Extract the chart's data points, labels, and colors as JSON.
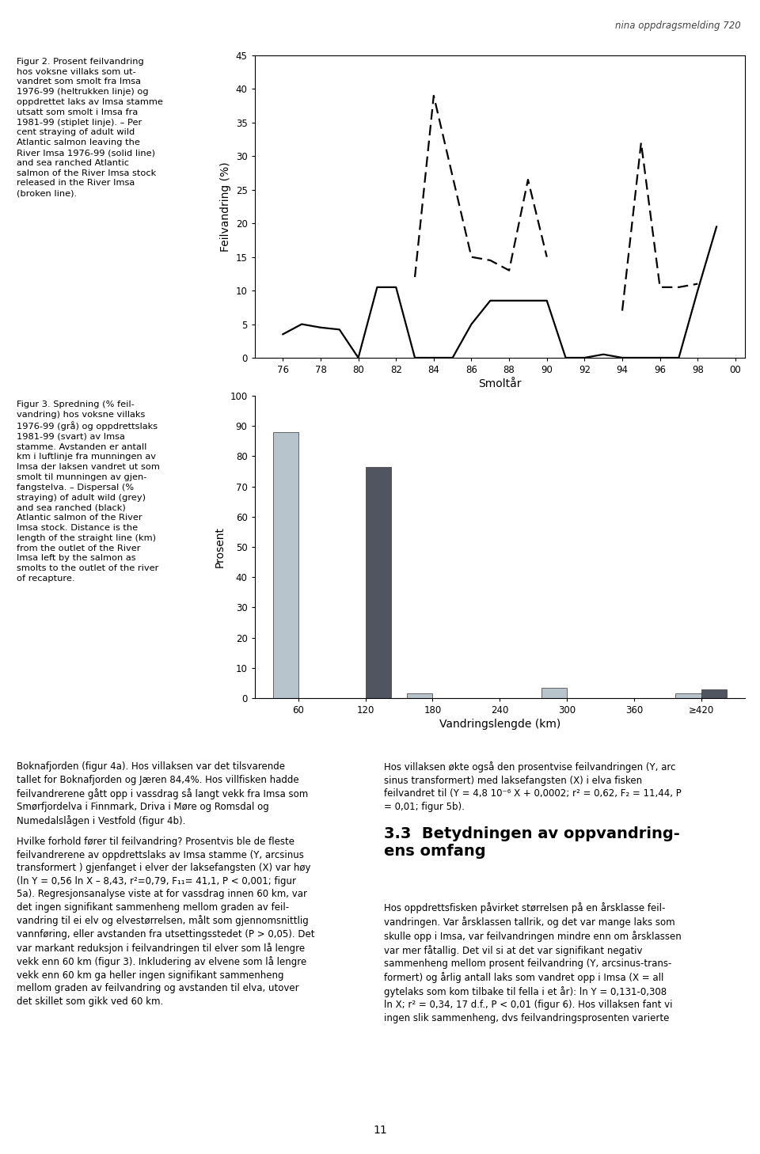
{
  "fig2": {
    "xlabel": "Smoltår",
    "ylabel": "Feilvandring (%)",
    "ylim": [
      0,
      45
    ],
    "yticks": [
      0,
      5,
      10,
      15,
      20,
      25,
      30,
      35,
      40,
      45
    ],
    "xvalues": [
      76,
      77,
      78,
      79,
      80,
      81,
      82,
      83,
      84,
      85,
      86,
      87,
      88,
      89,
      90,
      91,
      92,
      93,
      94,
      95,
      96,
      97,
      98,
      99
    ],
    "solid_line": [
      3.5,
      5.0,
      4.5,
      4.2,
      0.0,
      10.5,
      10.5,
      0.0,
      0.0,
      0.0,
      5.0,
      8.5,
      8.5,
      8.5,
      8.5,
      0.0,
      0.0,
      0.5,
      0.0,
      0.0,
      0.0,
      0.0,
      10.0,
      19.5
    ],
    "dashed_seg1_x": [
      83,
      84,
      85,
      86,
      87,
      88,
      89,
      90
    ],
    "dashed_seg1_y": [
      12.0,
      39.0,
      27.0,
      15.0,
      14.5,
      13.0,
      26.5,
      15.0
    ],
    "dashed_seg2_x": [
      94,
      95,
      96,
      97,
      98
    ],
    "dashed_seg2_y": [
      7.0,
      32.0,
      10.5,
      10.5,
      11.0
    ]
  },
  "fig3": {
    "xlabel": "Vandringslengde (km)",
    "ylabel": "Prosent",
    "ylim": [
      0,
      100
    ],
    "yticks": [
      0,
      10,
      20,
      30,
      40,
      50,
      60,
      70,
      80,
      90,
      100
    ],
    "categories": [
      "60",
      "120",
      "180",
      "240",
      "300",
      "360",
      "≥420"
    ],
    "grey_bars": [
      88.0,
      0.0,
      1.5,
      0.0,
      3.5,
      0.0,
      1.5
    ],
    "dark_bars": [
      0.0,
      76.5,
      0.0,
      0.0,
      0.0,
      0.0,
      3.0
    ],
    "grey_color": "#b8c4cc",
    "dark_color": "#505560"
  },
  "background": "#ffffff",
  "header_text": "nina oppdragsmelding 720",
  "page_number": "11",
  "fig2_left_text": "Figur 2. Prosent feilvandring\nhos voksne villaks som ut-\nvandret som smolt fra Imsa\n1976-99 (heltrukken linje) og\noppdrettet laks av Imsa stamme\nutsatt som smolt i Imsa fra\n1981-99 (stiplet linje). – Per\ncent straying of adult wild\nAtlantic salmon leaving the\nRiver Imsa 1976-99 (solid line)\nand sea ranched Atlantic\nsalmon of the River Imsa stock\nreleased in the River Imsa\n(broken line).",
  "fig3_left_text": "Figur 3. Spredning (% feil-\nvandring) hos voksne villaks\n1976-99 (grå) og oppdrettslaks\n1981-99 (svart) av Imsa\nstamme. Avstanden er antall\nkm i luftlinje fra munningen av\nImsa der laksen vandret ut som\nsmolt til munningen av gjen-\nfangstelva. – Dispersal (%\nstraying) of adult wild (grey)\nand sea ranched (black)\nAtlantic salmon of the River\nImsa stock. Distance is the\nlength of the straight line (km)\nfrom the outlet of the River\nImsa left by the salmon as\nsmolts to the outlet of the river\nof recapture.",
  "bottom_left_para1": "Boknafjorden (figur 4a). Hos villaksen var det tilsvarende tallet for Boknafjorden og Jæren 84,4%. Hos villfisken hadde feilvandrerene gått opp i vassdrag så langt vekk fra Imsa som Smørfjordelva i Finnmark, Driva i Møre og Romsdal og Numedalslågen i Vestfold (figur 4b).",
  "bottom_left_para2": "Hvilke forhold fører til feilvandring? Prosentvis ble de fleste feilvandrerene av oppdrettslaks av Imsa stamme (Y, arcsinus transformert ) gjenfanget i elver der laksefangsten (X) var høy (ln Y = 0,56 ln X – 8,43, r²=0,79, F₁₁= 41,1, P < 0,001; figur 5a). Regresjonsanalyse viste at for vassdrag innen 60 km, var det ingen signifikant sammenheng mellom graden av feilvandring til ei elv og elvestørrelsen, målt som gjennomsnittlig vannføring, eller avstanden fra utsettingsstedet (P > 0,05). Det var markant reduksjon i feilvandringen til elver som lå lengre vekk enn 60 km (figur 3). Inkludering av elvene som lå lengre vekk enn 60 km ga heller ingen signifikant sammenheng mellom graden av feilvandring og avstanden til elva, utover det skillet som gikk ved 60 km.",
  "bottom_right_para1": "Hos villaksen økte også den prosentvise feilvandringen (Y, arc sinus transformert) med laksefangsten (X) i elva fisken feilvandret til (Y = 4,8 10⁻⁶ X + 0,0002; r² = 0,62, F₂ = 11,44, P = 0,01; figur 5b).",
  "section_header": "3.3  Betydningen av oppvandring-\nens omfang",
  "bottom_right_para2": "Hos oppdrettsfisken påvirket størrelsen på en årsklasse feilvandringen. Var årsklassen tallrik, og det var mange laks som skulle opp i Imsa, var feilvandringen mindre enn om årsklassen var mer fåtallig. Det vil si at det var signifikant negativ sammenheng mellom prosent feilvandring (Y, arcsinus-trans­formert) og årlig antall laks som vandret opp i Imsa (X = all gytelaks som kom tilbake til fella i et år): ln Y = 0,131-0,308 ln X; r² = 0,34, 17 d.f., P < 0,01 (figur 6). Hos villaksen fant vi ingen slik sammenheng, dvs feilvandringsprosenten varierte"
}
